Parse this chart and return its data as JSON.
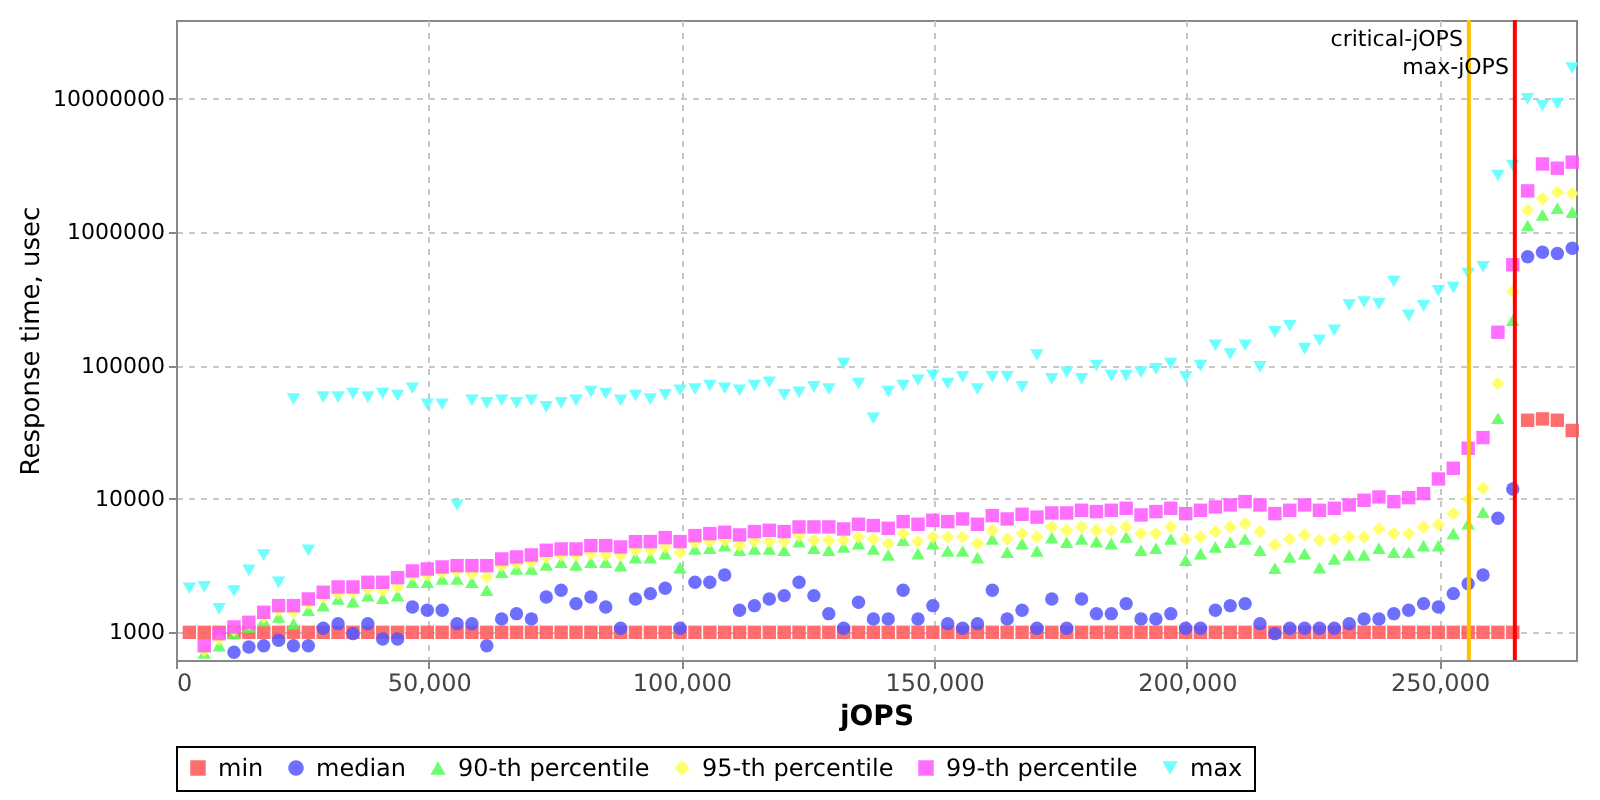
{
  "chart_data": {
    "type": "scatter",
    "xlabel": "jOPS",
    "ylabel": "Response time, usec",
    "log": "y",
    "grid": true,
    "legend": "bottom",
    "xlim": [
      0,
      277000
    ],
    "ylim": [
      620,
      39000000
    ],
    "xticks": [
      0,
      {
        "value": 50000,
        "label": "50,000"
      },
      {
        "value": 100000,
        "label": "100,000"
      },
      {
        "value": 150000,
        "label": "150,000"
      },
      {
        "value": 200000,
        "label": "200,000"
      },
      {
        "value": 250000,
        "label": "250,000"
      }
    ],
    "yticks": [
      1000,
      10000,
      100000,
      1000000,
      10000000
    ],
    "x": [
      2650,
      5592,
      8534,
      11476,
      14418,
      17360,
      20302,
      23244,
      26186,
      29128,
      32070,
      35012,
      37954,
      40896,
      43838,
      46780,
      49722,
      52664,
      55606,
      58548,
      61490,
      64432,
      67374,
      70316,
      73258,
      76200,
      79142,
      82084,
      85026,
      87968,
      90910,
      93852,
      96794,
      99736,
      102678,
      105620,
      108562,
      111504,
      114446,
      117388,
      120330,
      123272,
      126214,
      129156,
      132098,
      135040,
      137982,
      140924,
      143866,
      146808,
      149750,
      152692,
      155634,
      158576,
      161518,
      164460,
      167402,
      170344,
      173286,
      176228,
      179170,
      182112,
      185054,
      187996,
      190938,
      193880,
      196822,
      199764,
      202706,
      205648,
      208590,
      211532,
      214474,
      217416,
      220358,
      223300,
      226242,
      229184,
      232126,
      235068,
      238010,
      240952,
      243894,
      246836,
      249778,
      252720,
      255662,
      258604,
      261546,
      264488,
      267430,
      270372,
      273314,
      276256
    ],
    "series": [
      {
        "name": "min",
        "color": "#ff5555",
        "marker": "square",
        "values": [
          1000,
          1000,
          1000,
          1000,
          1000,
          1000,
          1000,
          1000,
          1000,
          1000,
          1000,
          1000,
          1000,
          1000,
          1000,
          1000,
          1000,
          1000,
          1000,
          1000,
          1000,
          1000,
          1000,
          1000,
          1000,
          1000,
          1000,
          1000,
          1000,
          1000,
          1000,
          1000,
          1000,
          1000,
          1000,
          1000,
          1000,
          1000,
          1000,
          1000,
          1000,
          1000,
          1000,
          1000,
          1000,
          1000,
          1000,
          1000,
          1000,
          1000,
          1000,
          1000,
          1000,
          1000,
          1000,
          1000,
          1000,
          1000,
          1000,
          1000,
          1000,
          1000,
          1000,
          1000,
          1000,
          1000,
          1000,
          1000,
          1000,
          1000,
          1000,
          1000,
          1000,
          1000,
          1000,
          1000,
          1000,
          1000,
          1000,
          1000,
          1000,
          1000,
          1000,
          1000,
          1000,
          1000,
          1000,
          1000,
          1000,
          1000,
          38900,
          39800,
          38900,
          32600
        ]
      },
      {
        "name": "median",
        "color": "#5555ff",
        "marker": "circle",
        "values": [
          null,
          null,
          null,
          708,
          776,
          794,
          871,
          794,
          794,
          1072,
          1161,
          977,
          1161,
          891,
          891,
          1549,
          1462,
          1462,
          1161,
          1161,
          794,
          1259,
          1380,
          1259,
          1841,
          2065,
          1641,
          1841,
          1549,
          1072,
          1778,
          1950,
          2138,
          1072,
          2371,
          2371,
          2692,
          1462,
          1585,
          1778,
          1884,
          2371,
          1884,
          1380,
          1072,
          1679,
          1259,
          1259,
          2065,
          1259,
          1585,
          1161,
          1072,
          1161,
          2065,
          1259,
          1462,
          1072,
          1778,
          1072,
          1778,
          1380,
          1380,
          1641,
          1259,
          1259,
          1380,
          1072,
          1072,
          1462,
          1585,
          1641,
          1161,
          977,
          1072,
          1072,
          1072,
          1072,
          1161,
          1259,
          1259,
          1380,
          1462,
          1641,
          1549,
          1950,
          2317,
          2692,
          7161,
          11885,
          655000,
          708000,
          692000,
          759000
        ]
      },
      {
        "name": "90-th percentile",
        "color": "#55ff55",
        "marker": "triangle",
        "values": [
          null,
          700,
          794,
          977,
          1096,
          1230,
          1303,
          1161,
          1462,
          1585,
          1778,
          1698,
          1884,
          1799,
          1884,
          2371,
          2371,
          2512,
          2512,
          2371,
          2065,
          2818,
          2985,
          2985,
          3199,
          3350,
          3199,
          3350,
          3350,
          3162,
          3631,
          3631,
          3890,
          3055,
          4217,
          4266,
          4467,
          4121,
          4217,
          4217,
          4121,
          4786,
          4266,
          4121,
          4365,
          4624,
          4217,
          3802,
          4898,
          3890,
          4624,
          4074,
          4074,
          3631,
          5012,
          3981,
          4624,
          4074,
          5129,
          4732,
          5012,
          4786,
          4624,
          5188,
          4121,
          4266,
          5012,
          3467,
          3890,
          4365,
          4732,
          5012,
          4121,
          3020,
          3673,
          3890,
          3055,
          3548,
          3802,
          3802,
          4266,
          3981,
          3981,
          4467,
          4467,
          5495,
          6531,
          7943,
          40300,
          218800,
          1122000,
          1349000,
          1514000,
          1413000
        ]
      },
      {
        "name": "95-th percentile",
        "color": "#ffff55",
        "marker": "diamond",
        "values": [
          null,
          733,
          891,
          1035,
          1161,
          1303,
          1462,
          1413,
          1641,
          1841,
          1950,
          1995,
          2113,
          2065,
          2188,
          2692,
          2692,
          2818,
          2884,
          2754,
          2600,
          3162,
          3273,
          3350,
          3631,
          3802,
          3802,
          3890,
          3802,
          3802,
          4121,
          4121,
          4365,
          3981,
          4732,
          4786,
          4898,
          4467,
          4786,
          4786,
          4786,
          5309,
          4898,
          4898,
          4898,
          5188,
          5012,
          4624,
          5495,
          4786,
          5188,
          5188,
          5188,
          4624,
          5820,
          5012,
          5495,
          5188,
          6166,
          5820,
          6166,
          5820,
          5820,
          6166,
          5495,
          5495,
          6166,
          5012,
          5188,
          5690,
          6166,
          6531,
          5690,
          4519,
          5012,
          5370,
          4898,
          5012,
          5188,
          5188,
          5957,
          5495,
          5495,
          6166,
          6383,
          7762,
          10000,
          12023,
          73300,
          359000,
          1462000,
          1778000,
          1995000,
          1950000
        ]
      },
      {
        "name": "99-th percentile",
        "color": "#ff55ff",
        "marker": "square",
        "values": [
          null,
          794,
          977,
          1096,
          1189,
          1413,
          1585,
          1585,
          1778,
          1995,
          2188,
          2188,
          2371,
          2371,
          2570,
          2884,
          2985,
          3090,
          3162,
          3162,
          3162,
          3548,
          3673,
          3802,
          4121,
          4217,
          4217,
          4467,
          4467,
          4365,
          4786,
          4786,
          5129,
          4786,
          5309,
          5495,
          5623,
          5370,
          5690,
          5820,
          5690,
          6166,
          6166,
          6166,
          5957,
          6457,
          6310,
          6026,
          6761,
          6457,
          6918,
          6761,
          7079,
          6457,
          7499,
          7079,
          7674,
          7311,
          7852,
          7852,
          8222,
          8035,
          8222,
          8511,
          7586,
          8035,
          8511,
          7762,
          8222,
          8710,
          9016,
          9550,
          9016,
          7762,
          8222,
          9016,
          8222,
          8511,
          9016,
          9772,
          10351,
          9550,
          10233,
          10965,
          14125,
          16982,
          23988,
          28840,
          177800,
          570000,
          2040000,
          3250000,
          3020000,
          3350000
        ]
      },
      {
        "name": "max",
        "color": "#55ffff",
        "marker": "triangle-down",
        "values": [
          2140,
          2190,
          1500,
          2040,
          2920,
          3800,
          2370,
          56000,
          4120,
          58000,
          58000,
          61700,
          58000,
          61700,
          59600,
          67600,
          51300,
          51300,
          9000,
          55000,
          52500,
          55000,
          52500,
          55000,
          49000,
          52500,
          55000,
          63800,
          61700,
          55000,
          59600,
          56200,
          60300,
          65300,
          66800,
          70800,
          67600,
          65300,
          70800,
          75000,
          60300,
          63000,
          69200,
          66800,
          103500,
          73300,
          40300,
          63800,
          70800,
          77600,
          84100,
          73300,
          82200,
          66800,
          82200,
          82200,
          69200,
          120000,
          79400,
          89100,
          79400,
          100000,
          84100,
          84100,
          89100,
          94400,
          103500,
          82200,
          100000,
          142000,
          122000,
          142000,
          97700,
          179000,
          199000,
          134000,
          155000,
          184000,
          284000,
          300000,
          290000,
          427000,
          237000,
          280000,
          363000,
          384000,
          490000,
          549000,
          2660000,
          3160000,
          10000000,
          8900000,
          9200000,
          17000000
        ]
      }
    ],
    "ref_lines": [
      {
        "axis": "x",
        "value": 255800,
        "label": "critical-jOPS",
        "color": "#ffc000"
      },
      {
        "axis": "x",
        "value": 264900,
        "label": "max-jOPS",
        "color": "#ff0000"
      }
    ]
  }
}
